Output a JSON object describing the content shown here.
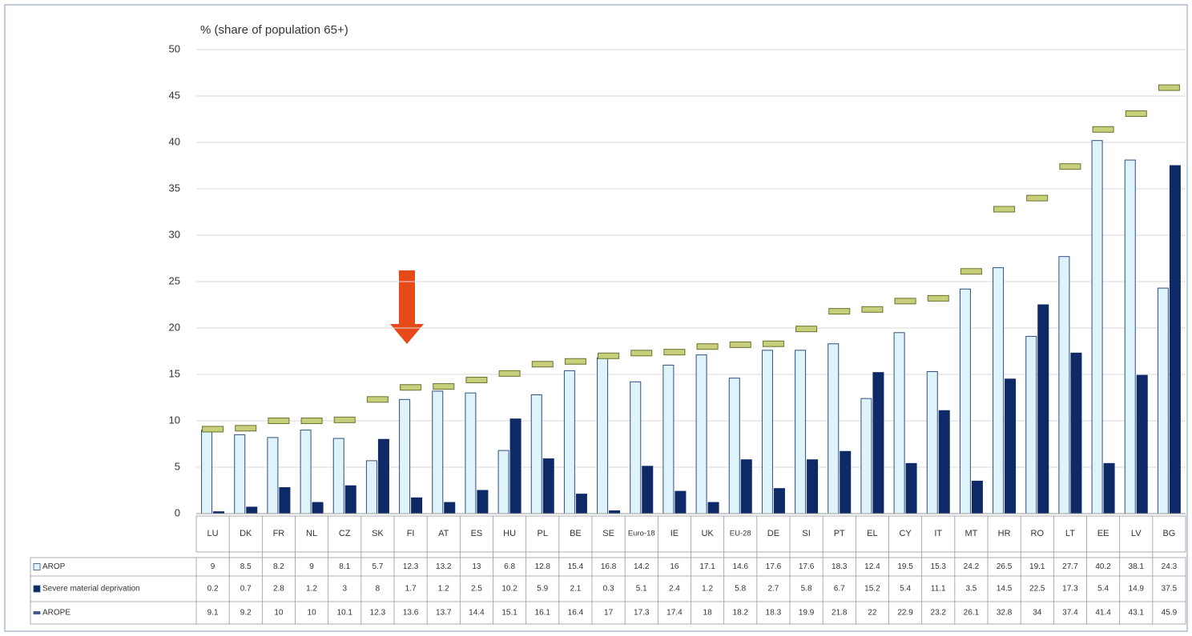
{
  "chart_data": {
    "type": "bar",
    "y_axis_label": "% (share of population 65+)",
    "categories": [
      "LU",
      "DK",
      "FR",
      "NL",
      "CZ",
      "SK",
      "FI",
      "AT",
      "ES",
      "HU",
      "PL",
      "BE",
      "SE",
      "Euro-18",
      "IE",
      "UK",
      "EU-28",
      "DE",
      "SI",
      "PT",
      "EL",
      "CY",
      "IT",
      "MT",
      "HR",
      "RO",
      "LT",
      "EE",
      "LV",
      "BG"
    ],
    "series": [
      {
        "name": "AROP",
        "type": "bar",
        "color": "#dff3fa",
        "values": [
          9,
          8.5,
          8.2,
          9,
          8.1,
          5.7,
          12.3,
          13.2,
          13,
          6.8,
          12.8,
          15.4,
          16.8,
          14.2,
          16,
          17.1,
          14.6,
          17.6,
          17.6,
          18.3,
          12.4,
          19.5,
          15.3,
          24.2,
          26.5,
          19.1,
          27.7,
          40.2,
          38.1,
          24.3
        ]
      },
      {
        "name": "Severe material deprivation",
        "type": "bar",
        "color": "#0e2a66",
        "values": [
          0.2,
          0.7,
          2.8,
          1.2,
          3,
          8,
          1.7,
          1.2,
          2.5,
          10.2,
          5.9,
          2.1,
          0.3,
          5.1,
          2.4,
          1.2,
          5.8,
          2.7,
          5.8,
          6.7,
          15.2,
          5.4,
          11.1,
          3.5,
          14.5,
          22.5,
          17.3,
          5.4,
          14.9,
          37.5
        ]
      },
      {
        "name": "AROPE",
        "type": "marker",
        "color": "#c7cf7a",
        "values": [
          9.1,
          9.2,
          10,
          10,
          10.1,
          12.3,
          13.6,
          13.7,
          14.4,
          15.1,
          16.1,
          16.4,
          17,
          17.3,
          17.4,
          18,
          18.2,
          18.3,
          19.9,
          21.8,
          22,
          22.9,
          23.2,
          26.1,
          32.8,
          34,
          37.4,
          41.4,
          43.1,
          45.9
        ]
      }
    ],
    "ylim": [
      0,
      50
    ],
    "yticks": [
      0,
      5,
      10,
      15,
      20,
      25,
      30,
      35,
      40,
      45,
      50
    ],
    "grid": true
  }
}
